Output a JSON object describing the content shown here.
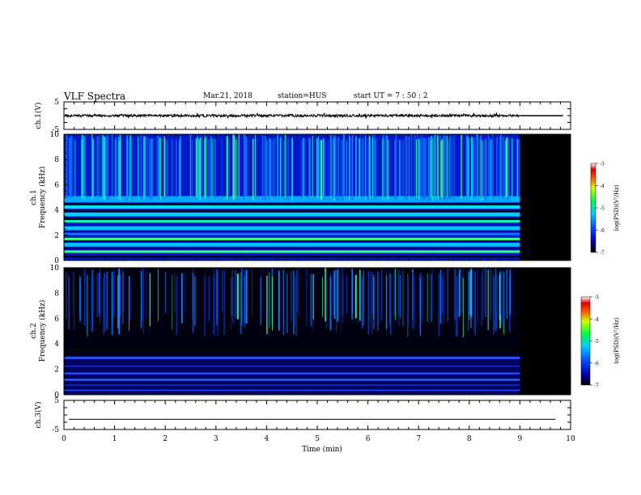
{
  "header": {
    "title": "VLF Spectra",
    "date": "Mar.21, 2018",
    "station": "station=HUS",
    "start_ut": "start  UT  =   7 : 50 : 2"
  },
  "chart_data": [
    {
      "type": "line",
      "panel": "ch1-waveform",
      "ylabel": "ch.1(V)",
      "ylim": [
        -5,
        5
      ],
      "yticks": [
        "5",
        "-5"
      ],
      "xlim": [
        0,
        10
      ],
      "baseline": 0,
      "data_end_min": 9
    },
    {
      "type": "heatmap",
      "panel": "ch1-spectrogram",
      "ylabel": "ch.1\nFrequency  (kHz)",
      "ylim": [
        0,
        10
      ],
      "yticks": [
        "0",
        "2",
        "4",
        "6",
        "8",
        "10"
      ],
      "xlim": [
        0,
        10
      ],
      "data_end_min": 9,
      "colorbar": {
        "label": "log(PSD)(V²/Hz)",
        "range": [
          -7,
          -3
        ],
        "ticks": [
          "-3",
          "-4",
          "-5",
          "-6",
          "-7"
        ]
      }
    },
    {
      "type": "heatmap",
      "panel": "ch2-spectrogram",
      "ylabel": "ch.2\nFrequency  (kHz)",
      "ylim": [
        0,
        10
      ],
      "yticks": [
        "0",
        "2",
        "4",
        "6",
        "8",
        "10"
      ],
      "xlim": [
        0,
        10
      ],
      "data_end_min": 9,
      "colorbar": {
        "label": "log(PSD)(V²/Hz)",
        "range": [
          -7,
          -3
        ],
        "ticks": [
          "-3",
          "-4",
          "-5",
          "-6",
          "-7"
        ]
      }
    },
    {
      "type": "line",
      "panel": "ch3-waveform",
      "ylabel": "ch.3(V)",
      "ylim": [
        -5,
        5
      ],
      "yticks": [
        "5",
        "-5"
      ],
      "xlim": [
        0,
        10
      ],
      "baseline": -1.5,
      "xlabel": "Time  (min)",
      "xticks": [
        "0",
        "1",
        "2",
        "3",
        "4",
        "5",
        "6",
        "7",
        "8",
        "9",
        "10"
      ]
    }
  ]
}
